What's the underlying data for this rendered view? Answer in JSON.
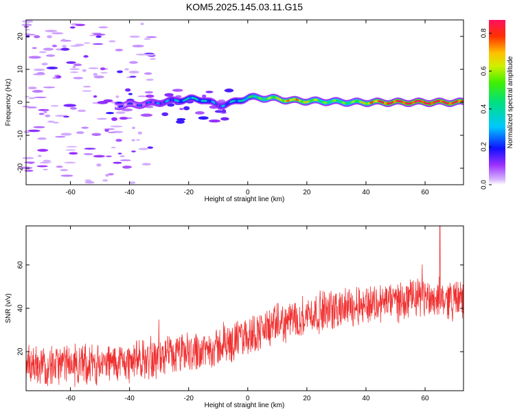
{
  "title": "KOM5.2025.145.03.11.G15",
  "chart_data": [
    {
      "type": "heatmap",
      "xlabel": "Height of straight line (km)",
      "ylabel": "Frequency (Hz)",
      "xlim": [
        -75,
        73
      ],
      "ylim": [
        -25,
        25
      ],
      "xticks": [
        -60,
        -40,
        -20,
        0,
        20,
        40,
        60
      ],
      "yticks": [
        -20,
        -10,
        0,
        10,
        20
      ],
      "colorbar": {
        "label": "Normalized spectral amplitude",
        "range": [
          0,
          0.87
        ],
        "ticks": [
          0.0,
          0.2,
          0.4,
          0.6,
          0.8
        ]
      },
      "ridge": {
        "description_points": [
          {
            "x": -45,
            "y": -1.0,
            "amp": 0.1
          },
          {
            "x": -35,
            "y": -0.5,
            "amp": 0.15
          },
          {
            "x": -25,
            "y": 0.5,
            "amp": 0.25
          },
          {
            "x": -20,
            "y": 1.0,
            "amp": 0.35
          },
          {
            "x": -15,
            "y": 0.8,
            "amp": 0.3
          },
          {
            "x": -10,
            "y": -1.0,
            "amp": 0.2
          },
          {
            "x": -5,
            "y": 0.0,
            "amp": 0.3
          },
          {
            "x": 0,
            "y": 1.5,
            "amp": 0.4
          },
          {
            "x": 8,
            "y": 1.2,
            "amp": 0.55
          },
          {
            "x": 15,
            "y": 0.5,
            "amp": 0.7
          },
          {
            "x": 25,
            "y": 0.3,
            "amp": 0.5
          },
          {
            "x": 35,
            "y": 0.0,
            "amp": 0.5
          },
          {
            "x": 45,
            "y": 0.0,
            "amp": 0.8
          },
          {
            "x": 60,
            "y": 0.0,
            "amp": 0.85
          },
          {
            "x": 73,
            "y": 0.0,
            "amp": 0.8
          }
        ]
      },
      "noise_region_x": [
        -75,
        -40
      ]
    },
    {
      "type": "line",
      "xlabel": "Height of straight line (km)",
      "ylabel": "SNR (v/v)",
      "xlim": [
        -75,
        73
      ],
      "ylim": [
        2,
        78
      ],
      "xticks": [
        -60,
        -40,
        -20,
        0,
        20,
        40,
        60
      ],
      "yticks": [
        20,
        40,
        60
      ],
      "color": "#f03030",
      "trend": [
        {
          "x": -75,
          "y": 14
        },
        {
          "x": -50,
          "y": 14
        },
        {
          "x": -30,
          "y": 17
        },
        {
          "x": -10,
          "y": 22
        },
        {
          "x": 5,
          "y": 30
        },
        {
          "x": 20,
          "y": 37
        },
        {
          "x": 40,
          "y": 42
        },
        {
          "x": 60,
          "y": 45
        },
        {
          "x": 73,
          "y": 44
        }
      ],
      "noise_amplitude": 9,
      "max_point": {
        "x": 65,
        "y": 78
      }
    }
  ]
}
